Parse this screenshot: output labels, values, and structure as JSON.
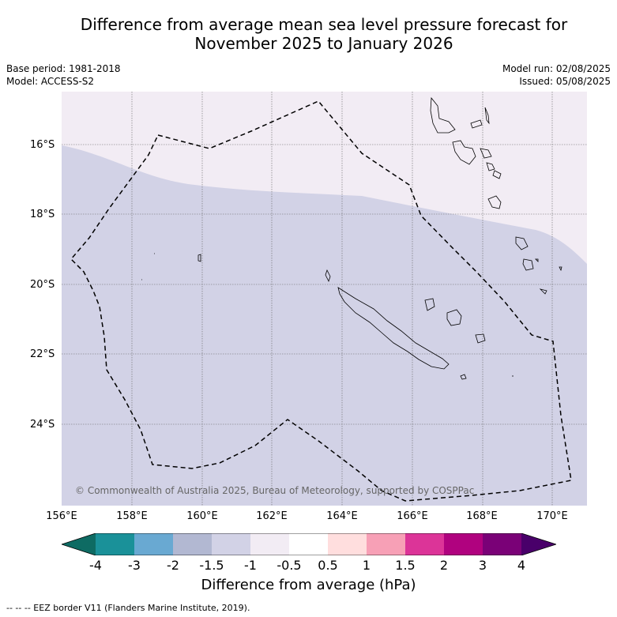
{
  "title_line1": "Difference from average mean sea level pressure forecast for",
  "title_line2": "November 2025 to January 2026",
  "meta_left": [
    "Base period: 1981-2018",
    "Model: ACCESS-S2"
  ],
  "meta_right": [
    "Model run: 02/08/2025",
    "Issued: 05/08/2025"
  ],
  "lat_labels": [
    "16°S",
    "18°S",
    "20°S",
    "22°S",
    "24°S"
  ],
  "lon_labels": [
    "156°E",
    "158°E",
    "160°E",
    "162°E",
    "164°E",
    "166°E",
    "168°E",
    "170°E"
  ],
  "copyright": "© Commonwealth of Australia 2025, Bureau of Meteorology, supported by COSPPac",
  "colorbar": {
    "title": "Difference from average (hPa)",
    "ticks": [
      "-4",
      "-3",
      "-2",
      "-1.5",
      "-1",
      "-0.5",
      "0.5",
      "1",
      "1.5",
      "2",
      "3",
      "4"
    ],
    "colors": [
      "#0e6b63",
      "#1a9199",
      "#69a9d2",
      "#b2b8d2",
      "#d2d2e6",
      "#f2ecf4",
      "#ffffff",
      "#ffdede",
      "#f7a0b6",
      "#dc3498",
      "#b0027f",
      "#7a0177",
      "#49006a"
    ]
  },
  "fill_colors": {
    "north": "#f2ecf4",
    "south": "#d2d2e6"
  },
  "footnote": "--  --  -- EEZ border V11 (Flanders Marine Institute, 2019)."
}
